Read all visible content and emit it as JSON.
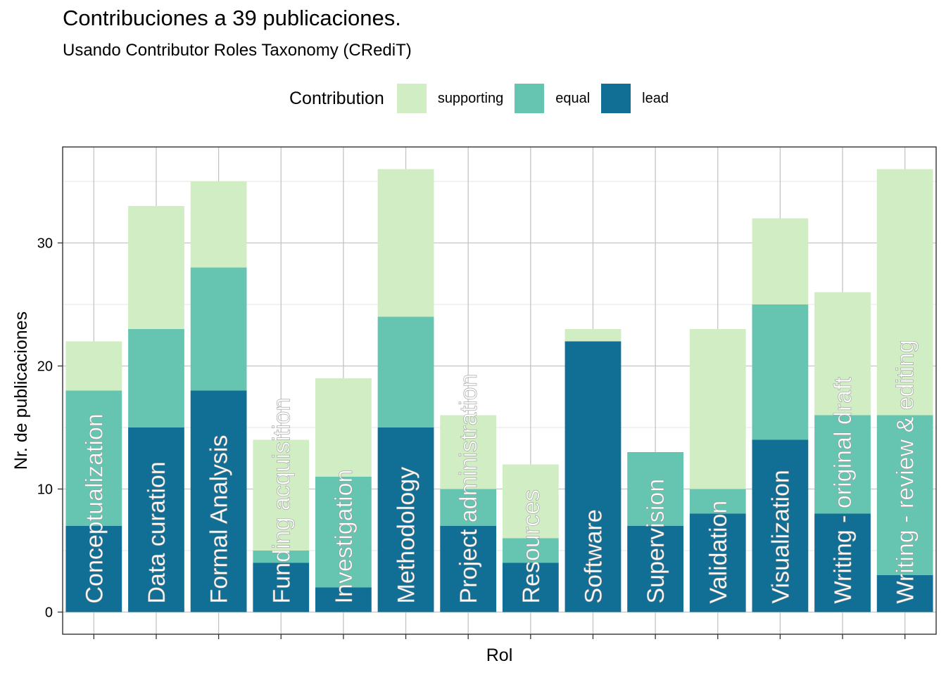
{
  "chart_data": {
    "type": "bar",
    "stacked": true,
    "title": "Contribuciones a 39 publicaciones.",
    "subtitle": "Usando Contributor Roles Taxonomy (CRediT)",
    "xlabel": "Rol",
    "ylabel": "Nr. de publicaciones",
    "ylim": [
      -1.8,
      37.8
    ],
    "yticks": [
      0,
      10,
      20,
      30
    ],
    "grid": true,
    "legend": {
      "title": "Contribution",
      "placement": "top",
      "entries": [
        {
          "name": "supporting",
          "color": "#d1edc4"
        },
        {
          "name": "equal",
          "color": "#66c5b0"
        },
        {
          "name": "lead",
          "color": "#116f96"
        }
      ]
    },
    "categories": [
      "Conceptualization",
      "Data curation",
      "Formal Analysis",
      "Funding acquisition",
      "Investigation",
      "Methodology",
      "Project administration",
      "Resources",
      "Software",
      "Supervision",
      "Validation",
      "Visualization",
      "Writing - original draft",
      "Writing - review & editing"
    ],
    "series": [
      {
        "name": "lead",
        "color": "#116f96",
        "values": [
          7,
          15,
          18,
          4,
          2,
          15,
          7,
          4,
          22,
          7,
          8,
          14,
          8,
          3
        ]
      },
      {
        "name": "equal",
        "color": "#66c5b0",
        "values": [
          11,
          8,
          10,
          1,
          9,
          9,
          3,
          2,
          0,
          6,
          2,
          11,
          8,
          13
        ]
      },
      {
        "name": "supporting",
        "color": "#d1edc4",
        "values": [
          4,
          10,
          7,
          9,
          8,
          12,
          6,
          6,
          1,
          0,
          13,
          7,
          10,
          20
        ]
      }
    ]
  }
}
